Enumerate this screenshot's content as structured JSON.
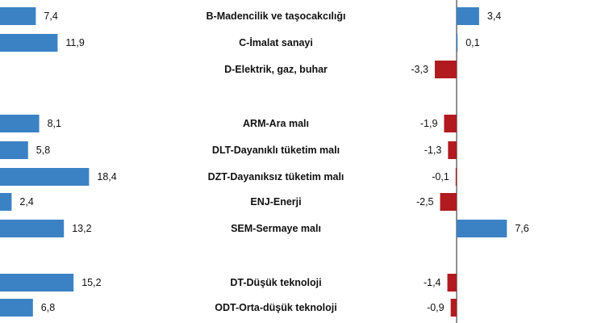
{
  "chart_data": [
    {
      "type": "bar",
      "orientation": "horizontal",
      "categories": [
        "B-Madencilik ve taşocakcılığı",
        "C-İmalat sanayi",
        "D-Elektrik, gaz, buhar",
        "ARM-Ara malı",
        "DLT-Dayanıklı tüketim malı",
        "DZT-Dayanıksız tüketim malı",
        "ENJ-Enerji",
        "SEM-Sermaye malı",
        "DT-Düşük teknoloji",
        "ODT-Orta-düşük teknoloji"
      ],
      "values": [
        7.4,
        11.9,
        null,
        8.1,
        5.8,
        18.4,
        2.4,
        13.2,
        15.2,
        6.8
      ],
      "value_labels": [
        "7,4",
        "11,9",
        "",
        "8,1",
        "5,8",
        "18,4",
        "2,4",
        "13,2",
        "15,2",
        "6,8"
      ],
      "colors": {
        "positive": "#3B82C4",
        "negative": "#B11A1F"
      }
    },
    {
      "type": "bar",
      "orientation": "horizontal",
      "categories": [
        "B-Madencilik ve taşocakcılığı",
        "C-İmalat sanayi",
        "D-Elektrik, gaz, buhar",
        "ARM-Ara malı",
        "DLT-Dayanıklı tüketim malı",
        "DZT-Dayanıksız tüketim malı",
        "ENJ-Enerji",
        "SEM-Sermaye malı",
        "DT-Düşük teknoloji",
        "ODT-Orta-düşük teknoloji"
      ],
      "values": [
        3.4,
        0.1,
        -3.3,
        -1.9,
        -1.3,
        -0.1,
        -2.5,
        7.6,
        -1.4,
        -0.9
      ],
      "value_labels": [
        "3,4",
        "0,1",
        "-3,3",
        "-1,9",
        "-1,3",
        "-0,1",
        "-2,5",
        "7,6",
        "-1,4",
        "-0,9"
      ],
      "colors": {
        "positive": "#3B82C4",
        "negative": "#B11A1F"
      }
    }
  ]
}
